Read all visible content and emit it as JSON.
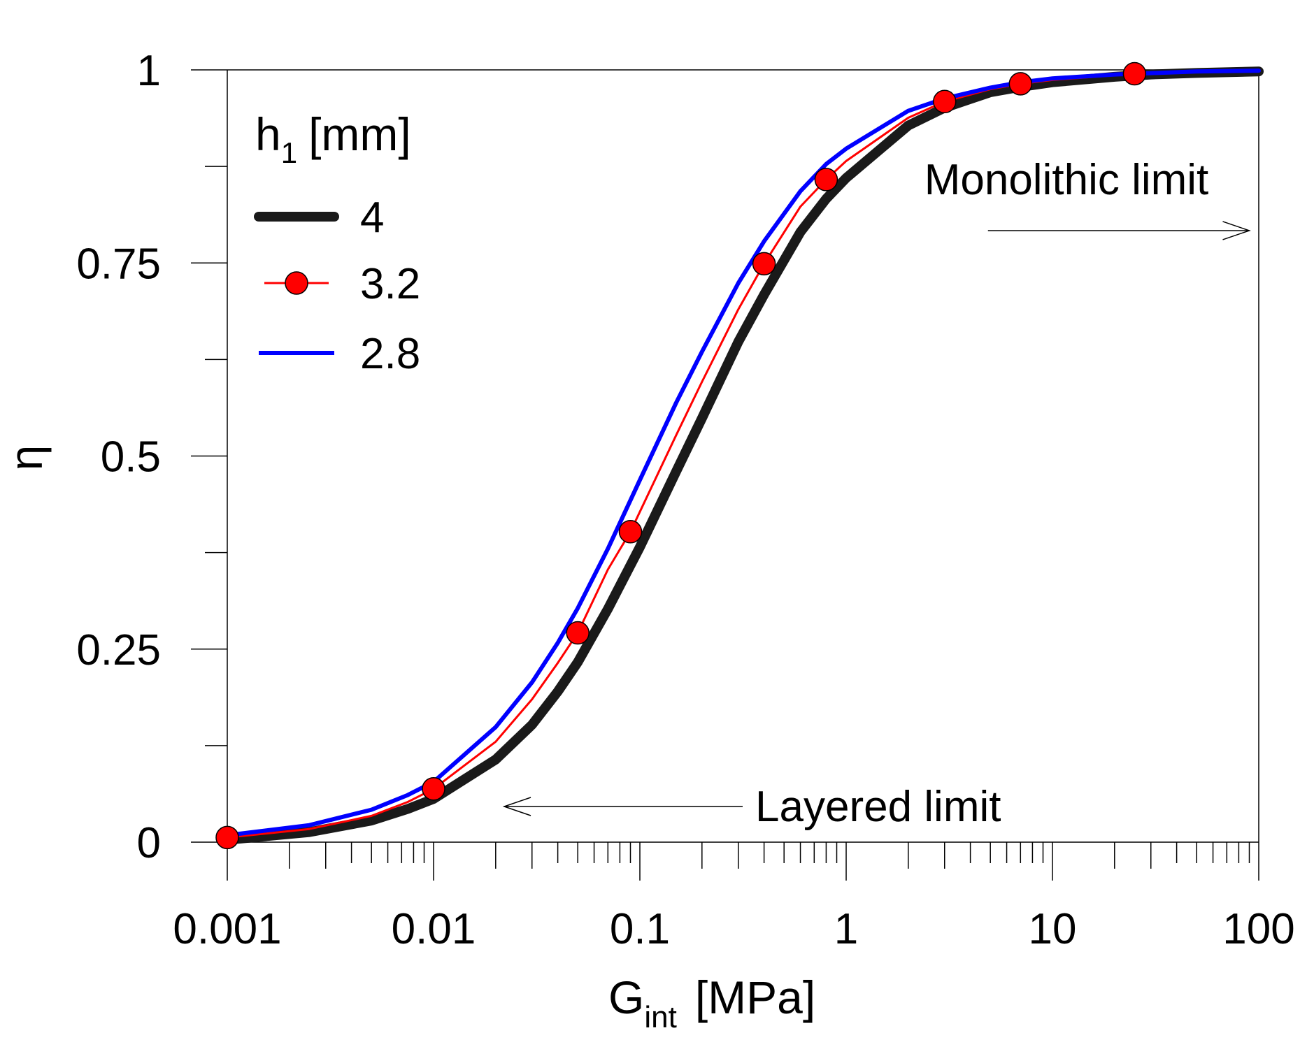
{
  "chart_data": {
    "type": "line",
    "xscale": "log",
    "xlim": [
      0.001,
      100
    ],
    "ylim": [
      0,
      1
    ],
    "grid": false,
    "legend_position": "top-left",
    "xlabel": {
      "main": "G",
      "sub": "int",
      "unit": "[MPa]"
    },
    "ylabel": "η",
    "x_ticks": [
      {
        "value": 0.001,
        "label": "0.001"
      },
      {
        "value": 0.01,
        "label": "0.01"
      },
      {
        "value": 0.1,
        "label": "0.1"
      },
      {
        "value": 1,
        "label": "1"
      },
      {
        "value": 10,
        "label": "10"
      },
      {
        "value": 100,
        "label": "100"
      }
    ],
    "y_ticks": [
      {
        "value": 0,
        "label": "0"
      },
      {
        "value": 0.25,
        "label": "0.25"
      },
      {
        "value": 0.5,
        "label": "0.5"
      },
      {
        "value": 0.75,
        "label": "0.75"
      },
      {
        "value": 1,
        "label": "1"
      }
    ],
    "y_minor_ticks": [
      0.125,
      0.375,
      0.625,
      0.875
    ],
    "legend": {
      "title_main": "h",
      "title_sub": "1",
      "title_unit": "[mm]"
    },
    "series": [
      {
        "name": "4",
        "color": "#1a1a1a",
        "style": "thick",
        "x": [
          0.001,
          0.0025,
          0.005,
          0.0075,
          0.01,
          0.02,
          0.03,
          0.04,
          0.05,
          0.07,
          0.1,
          0.15,
          0.2,
          0.3,
          0.4,
          0.6,
          0.8,
          1,
          2,
          3,
          5,
          7,
          10,
          20,
          30,
          50,
          100
        ],
        "y": [
          0.003,
          0.013,
          0.028,
          0.043,
          0.056,
          0.107,
          0.152,
          0.195,
          0.233,
          0.302,
          0.382,
          0.48,
          0.549,
          0.648,
          0.709,
          0.79,
          0.833,
          0.86,
          0.928,
          0.951,
          0.971,
          0.978,
          0.984,
          0.991,
          0.994,
          0.996,
          0.998
        ]
      },
      {
        "name": "3.2",
        "color": "#ff0000",
        "style": "thin-markers",
        "x": [
          0.001,
          0.0025,
          0.005,
          0.0075,
          0.01,
          0.02,
          0.03,
          0.04,
          0.05,
          0.07,
          0.09,
          0.15,
          0.2,
          0.3,
          0.4,
          0.6,
          0.8,
          1,
          2,
          3,
          5,
          7,
          10,
          25,
          50,
          100
        ],
        "y": [
          0.006,
          0.017,
          0.034,
          0.052,
          0.069,
          0.13,
          0.185,
          0.232,
          0.271,
          0.353,
          0.402,
          0.527,
          0.596,
          0.69,
          0.749,
          0.823,
          0.858,
          0.882,
          0.938,
          0.959,
          0.975,
          0.982,
          0.987,
          0.995,
          0.997,
          0.999
        ]
      },
      {
        "name": "2.8",
        "color": "#0000ff",
        "style": "medium",
        "x": [
          0.001,
          0.0025,
          0.005,
          0.0075,
          0.01,
          0.02,
          0.03,
          0.04,
          0.05,
          0.07,
          0.1,
          0.15,
          0.2,
          0.3,
          0.4,
          0.6,
          0.8,
          1,
          2,
          3,
          5,
          7,
          10,
          20,
          50,
          100
        ],
        "y": [
          0.009,
          0.022,
          0.042,
          0.061,
          0.078,
          0.149,
          0.207,
          0.258,
          0.303,
          0.38,
          0.469,
          0.569,
          0.635,
          0.724,
          0.778,
          0.843,
          0.878,
          0.898,
          0.947,
          0.963,
          0.977,
          0.984,
          0.989,
          0.994,
          0.998,
          0.999
        ]
      }
    ],
    "markers": {
      "series": "3.2",
      "x": [
        0.001,
        0.01,
        0.05,
        0.09,
        0.4,
        0.8,
        3,
        7,
        25
      ],
      "y": [
        0.006,
        0.069,
        0.271,
        0.402,
        0.749,
        0.858,
        0.959,
        0.982,
        0.995
      ]
    },
    "annotations": [
      {
        "text": "Monolithic limit",
        "arrow_from_x": 3,
        "arrow_to_x": 90,
        "arrow_y": 0.81
      },
      {
        "text": "Layered limit",
        "arrow_from_x": 0.2,
        "arrow_to_x": 0.022,
        "arrow_y": 0.05
      }
    ]
  }
}
